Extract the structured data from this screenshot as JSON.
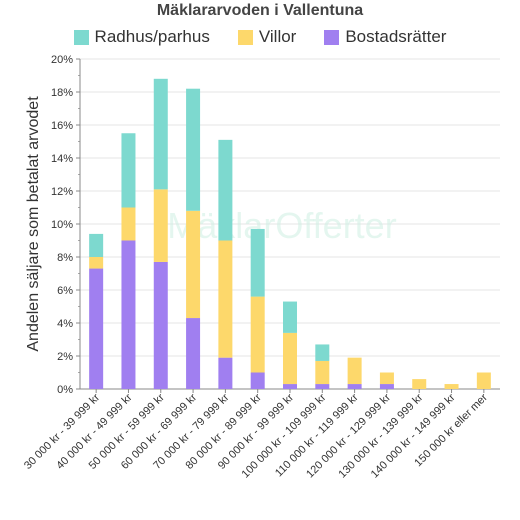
{
  "chart_data": {
    "type": "bar",
    "stacked": true,
    "title": "Mäklararvoden i Vallentuna",
    "ylabel": "Andelen säljare som betalat arvodet",
    "xlabel": "",
    "ylim": [
      0,
      20
    ],
    "yticks": [
      "0%",
      "2%",
      "4%",
      "6%",
      "8%",
      "10%",
      "12%",
      "14%",
      "16%",
      "18%",
      "20%"
    ],
    "grid": true,
    "legend": "top-center",
    "watermark": "MäklarOfferter",
    "categories": [
      "30 000 kr - 39 999 kr",
      "40 000 kr - 49 999 kr",
      "50 000 kr - 59 999 kr",
      "60 000 kr - 69 999 kr",
      "70 000 kr - 79 999 kr",
      "80 000 kr - 89 999 kr",
      "90 000 kr - 99 999 kr",
      "100 000 kr - 109 999 kr",
      "110 000 kr - 119 999 kr",
      "120 000 kr - 129 999 kr",
      "130 000 kr - 139 999 kr",
      "140 000 kr - 149 999 kr",
      "150 000 kr eller mer"
    ],
    "series": [
      {
        "name": "Bostadsrätter",
        "color": "#a07ff0",
        "values": [
          7.3,
          9.0,
          7.7,
          4.3,
          1.9,
          1.0,
          0.3,
          0.3,
          0.3,
          0.3,
          0.0,
          0.0,
          0.0
        ]
      },
      {
        "name": "Villor",
        "color": "#fdd86b",
        "values": [
          0.7,
          2.0,
          4.4,
          6.5,
          7.1,
          4.6,
          3.1,
          1.4,
          1.6,
          0.7,
          0.6,
          0.3,
          1.0
        ]
      },
      {
        "name": "Radhus/parhus",
        "color": "#7dd9cf",
        "values": [
          1.4,
          4.5,
          6.7,
          7.4,
          6.1,
          4.1,
          1.9,
          1.0,
          0.0,
          0.0,
          0.0,
          0.0,
          0.0
        ]
      }
    ],
    "legend_order": [
      "Radhus/parhus",
      "Villor",
      "Bostadsrätter"
    ]
  }
}
